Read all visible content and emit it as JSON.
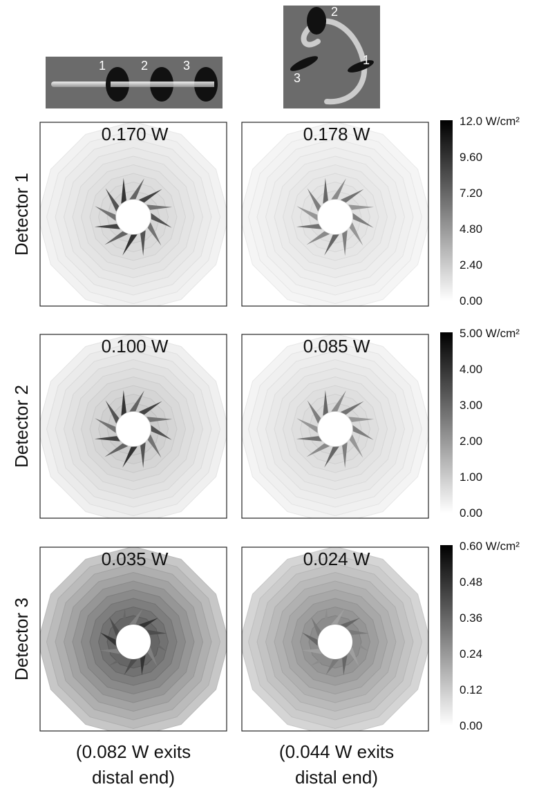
{
  "diagrams": [
    {
      "labels": [
        "1",
        "2",
        "3"
      ]
    },
    {
      "labels": [
        "2",
        "1",
        "3"
      ]
    }
  ],
  "rows": [
    {
      "label": "Detector 1",
      "powers": [
        "0.170 W",
        "0.178 W"
      ],
      "colorbar": [
        "12.0 W/cm²",
        "9.60",
        "7.20",
        "4.80",
        "2.40",
        "0.00"
      ]
    },
    {
      "label": "Detector 2",
      "powers": [
        "0.100 W",
        "0.085 W"
      ],
      "colorbar": [
        "5.00 W/cm²",
        "4.00",
        "3.00",
        "2.00",
        "1.00",
        "0.00"
      ]
    },
    {
      "label": "Detector 3",
      "powers": [
        "0.035 W",
        "0.024 W"
      ],
      "colorbar": [
        "0.60 W/cm²",
        "0.48",
        "0.36",
        "0.24",
        "0.12",
        "0.00"
      ]
    }
  ],
  "footnotes": [
    [
      "(0.082 W exits",
      "distal end)"
    ],
    [
      "(0.044 W exits",
      "distal end)"
    ]
  ]
}
